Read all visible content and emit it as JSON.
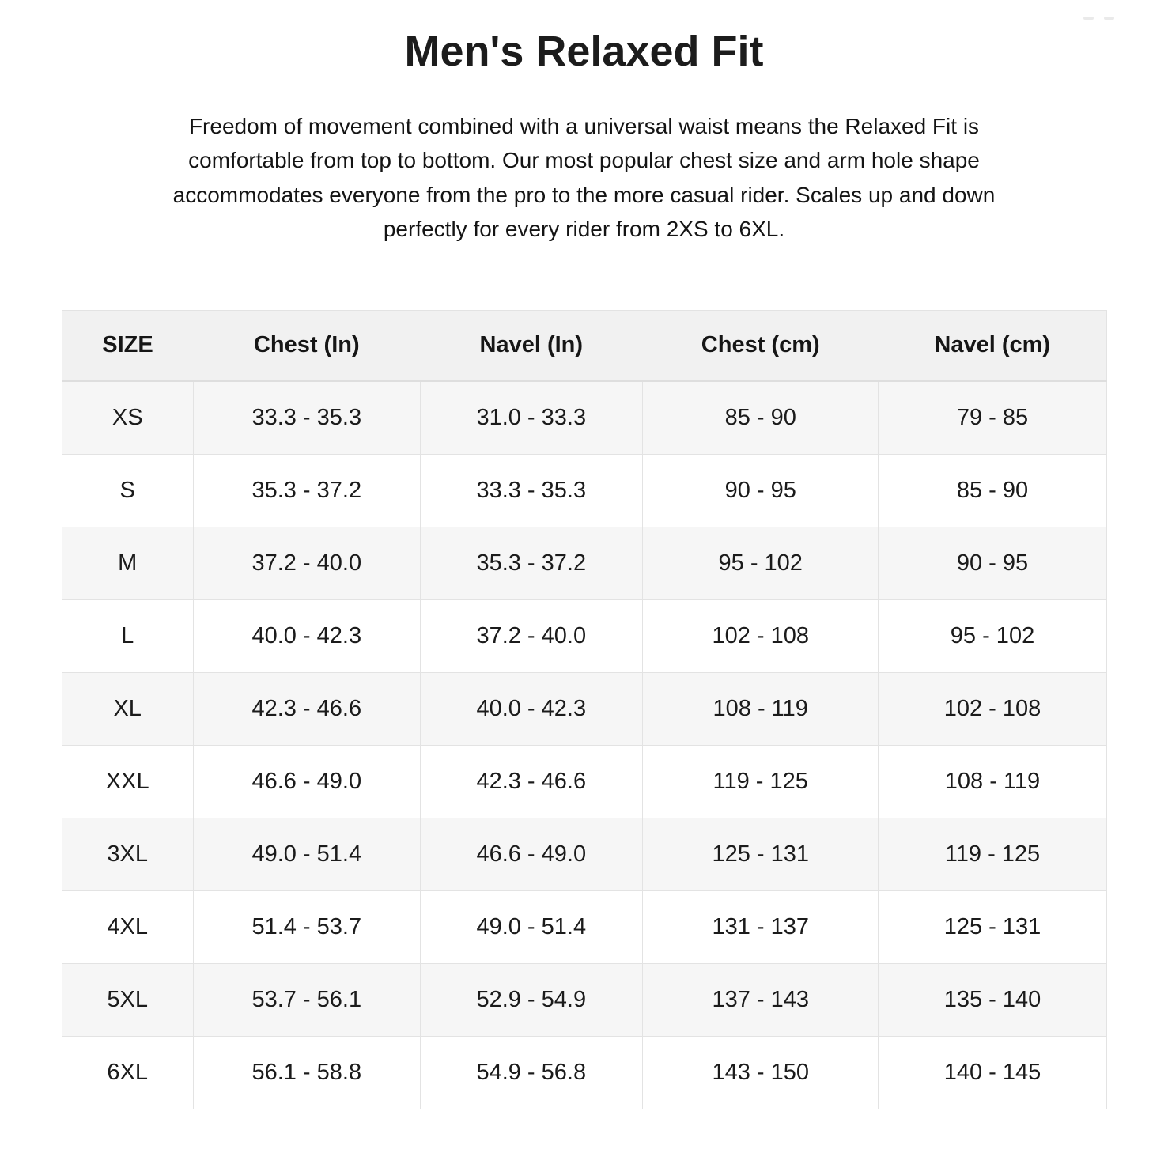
{
  "page": {
    "title": "Men's Relaxed Fit",
    "description": "Freedom of movement combined with a universal waist means the Relaxed Fit is comfortable from top to bottom. Our most popular chest size and arm hole shape accommodates everyone from the pro to the more casual rider. Scales up and down perfectly for every rider from 2XS to 6XL."
  },
  "size_chart": {
    "columns": [
      "SIZE",
      "Chest (In)",
      "Navel (In)",
      "Chest (cm)",
      "Navel (cm)"
    ],
    "rows": [
      [
        "XS",
        "33.3 - 35.3",
        "31.0 - 33.3",
        "85 - 90",
        "79 - 85"
      ],
      [
        "S",
        "35.3 - 37.2",
        "33.3 - 35.3",
        "90 - 95",
        "85 - 90"
      ],
      [
        "M",
        "37.2 - 40.0",
        "35.3 - 37.2",
        "95 - 102",
        "90 - 95"
      ],
      [
        "L",
        "40.0 - 42.3",
        "37.2 - 40.0",
        "102 - 108",
        "95 - 102"
      ],
      [
        "XL",
        "42.3 - 46.6",
        "40.0 - 42.3",
        "108 - 119",
        "102 - 108"
      ],
      [
        "XXL",
        "46.6 - 49.0",
        "42.3 - 46.6",
        "119 - 125",
        "108 - 119"
      ],
      [
        "3XL",
        "49.0 - 51.4",
        "46.6 - 49.0",
        "125 - 131",
        "119 - 125"
      ],
      [
        "4XL",
        "51.4 - 53.7",
        "49.0 - 51.4",
        "131 - 137",
        "125 - 131"
      ],
      [
        "5XL",
        "53.7 - 56.1",
        "52.9 - 54.9",
        "137 - 143",
        "135 - 140"
      ],
      [
        "6XL",
        "56.1 - 58.8",
        "54.9 - 56.8",
        "143 - 150",
        "140 - 145"
      ]
    ]
  },
  "colors": {
    "header_bg": "#f1f1f1",
    "row_alt_bg": "#f6f6f6",
    "row_bg": "#ffffff",
    "border": "#e3e3e3",
    "text": "#1a1a1a"
  }
}
